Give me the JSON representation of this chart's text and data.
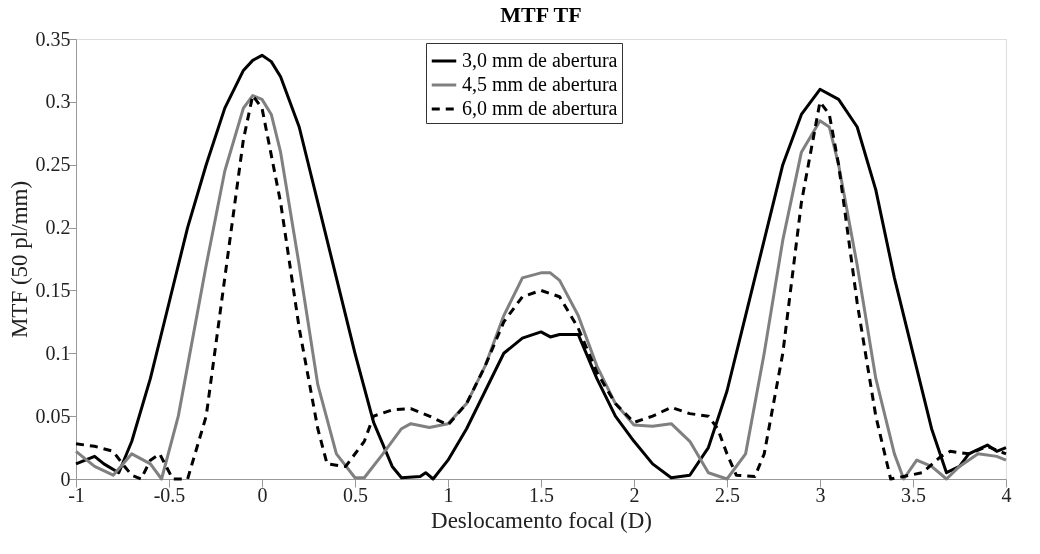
{
  "chart_data": {
    "type": "line",
    "title": "MTF TF",
    "xlabel": "Deslocamento focal (D)",
    "ylabel": "MTF (50 pl/mm)",
    "xlim": [
      -1,
      4
    ],
    "xticks": [
      {
        "value": -1,
        "label": "-1"
      },
      {
        "value": -0.5,
        "label": "-0.5"
      },
      0,
      0.5,
      1,
      1.5,
      2,
      2.5,
      3,
      3.5,
      4
    ],
    "ylim": [
      0,
      0.35
    ],
    "yticks": [
      0,
      0.05,
      0.1,
      0.15,
      0.2,
      0.25,
      0.3,
      0.35
    ],
    "legend": "top",
    "grid": false,
    "series": [
      {
        "name": "3,0 mm de abertura",
        "color": "#000000",
        "line_style": "solid",
        "x": [
          -1,
          -0.9,
          -0.85,
          -0.77,
          -0.7,
          -0.6,
          -0.5,
          -0.4,
          -0.3,
          -0.2,
          -0.1,
          -0.05,
          0,
          0.05,
          0.1,
          0.2,
          0.3,
          0.4,
          0.5,
          0.6,
          0.7,
          0.75,
          0.85,
          0.88,
          0.92,
          1.0,
          1.1,
          1.2,
          1.3,
          1.4,
          1.5,
          1.55,
          1.6,
          1.7,
          1.8,
          1.9,
          2.0,
          2.1,
          2.2,
          2.3,
          2.4,
          2.5,
          2.6,
          2.7,
          2.8,
          2.9,
          3.0,
          3.1,
          3.2,
          3.3,
          3.4,
          3.5,
          3.6,
          3.68,
          3.75,
          3.8,
          3.9,
          3.95,
          4.0
        ],
        "values": [
          0.012,
          0.018,
          0.012,
          0.005,
          0.03,
          0.08,
          0.14,
          0.2,
          0.25,
          0.295,
          0.325,
          0.333,
          0.337,
          0.332,
          0.32,
          0.28,
          0.22,
          0.16,
          0.1,
          0.045,
          0.01,
          0.001,
          0.002,
          0.005,
          0.0,
          0.015,
          0.04,
          0.07,
          0.1,
          0.112,
          0.117,
          0.113,
          0.115,
          0.115,
          0.08,
          0.05,
          0.03,
          0.012,
          0.001,
          0.003,
          0.025,
          0.07,
          0.13,
          0.19,
          0.25,
          0.29,
          0.31,
          0.302,
          0.28,
          0.23,
          0.16,
          0.1,
          0.04,
          0.005,
          0.01,
          0.02,
          0.027,
          0.022,
          0.025
        ]
      },
      {
        "name": "4,5 mm de abertura",
        "color": "#808080",
        "line_style": "solid",
        "x": [
          -1,
          -0.9,
          -0.8,
          -0.7,
          -0.6,
          -0.54,
          -0.45,
          -0.4,
          -0.3,
          -0.2,
          -0.1,
          -0.05,
          0,
          0.05,
          0.1,
          0.2,
          0.3,
          0.4,
          0.5,
          0.55,
          0.65,
          0.75,
          0.8,
          0.9,
          1.0,
          1.1,
          1.2,
          1.3,
          1.4,
          1.5,
          1.55,
          1.6,
          1.7,
          1.8,
          1.9,
          2.0,
          2.1,
          2.2,
          2.3,
          2.4,
          2.5,
          2.6,
          2.7,
          2.8,
          2.9,
          3.0,
          3.05,
          3.1,
          3.2,
          3.3,
          3.4,
          3.45,
          3.52,
          3.6,
          3.68,
          3.75,
          3.85,
          3.95,
          4.0
        ],
        "values": [
          0.022,
          0.01,
          0.003,
          0.02,
          0.012,
          0.0,
          0.05,
          0.09,
          0.17,
          0.245,
          0.295,
          0.305,
          0.302,
          0.29,
          0.26,
          0.17,
          0.075,
          0.02,
          0.001,
          0.001,
          0.02,
          0.04,
          0.044,
          0.041,
          0.044,
          0.06,
          0.09,
          0.13,
          0.16,
          0.164,
          0.164,
          0.158,
          0.13,
          0.09,
          0.06,
          0.043,
          0.042,
          0.044,
          0.03,
          0.005,
          0.0,
          0.02,
          0.1,
          0.19,
          0.26,
          0.285,
          0.28,
          0.25,
          0.17,
          0.08,
          0.02,
          0.0,
          0.015,
          0.01,
          0.0,
          0.01,
          0.02,
          0.018,
          0.015
        ]
      },
      {
        "name": "6,0 mm de abertura",
        "color": "#000000",
        "line_style": "dashed",
        "x": [
          -1,
          -0.9,
          -0.8,
          -0.75,
          -0.7,
          -0.65,
          -0.6,
          -0.55,
          -0.48,
          -0.4,
          -0.3,
          -0.2,
          -0.1,
          -0.05,
          0,
          0.1,
          0.2,
          0.3,
          0.35,
          0.45,
          0.55,
          0.6,
          0.7,
          0.8,
          0.9,
          1.0,
          1.1,
          1.2,
          1.3,
          1.4,
          1.5,
          1.6,
          1.7,
          1.8,
          1.9,
          2.0,
          2.1,
          2.2,
          2.3,
          2.4,
          2.45,
          2.5,
          2.55,
          2.65,
          2.7,
          2.8,
          2.9,
          3.0,
          3.05,
          3.1,
          3.2,
          3.3,
          3.38,
          3.45,
          3.55,
          3.65,
          3.7,
          3.8,
          3.9,
          4.0
        ],
        "values": [
          0.028,
          0.026,
          0.022,
          0.012,
          0.003,
          0.0,
          0.015,
          0.02,
          0.0,
          0.0,
          0.05,
          0.16,
          0.27,
          0.305,
          0.295,
          0.22,
          0.12,
          0.04,
          0.012,
          0.01,
          0.03,
          0.05,
          0.055,
          0.056,
          0.05,
          0.043,
          0.06,
          0.09,
          0.125,
          0.145,
          0.15,
          0.145,
          0.12,
          0.085,
          0.06,
          0.045,
          0.05,
          0.057,
          0.052,
          0.05,
          0.04,
          0.02,
          0.003,
          0.002,
          0.02,
          0.1,
          0.22,
          0.3,
          0.29,
          0.25,
          0.14,
          0.05,
          0.0,
          0.002,
          0.005,
          0.018,
          0.022,
          0.02,
          0.026,
          0.02
        ]
      }
    ]
  }
}
